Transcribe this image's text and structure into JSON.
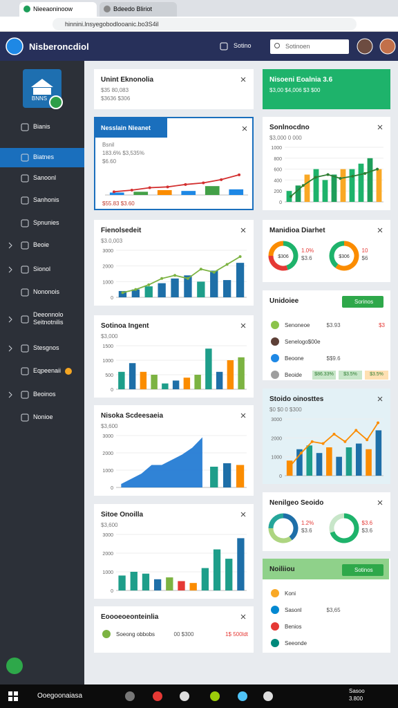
{
  "browser": {
    "tabs": [
      "Nieeaoninoow",
      "Bdeedo Bliriot"
    ],
    "url": "hinnini.lnsyegobodlooanic.bo3S4il"
  },
  "header": {
    "title": "Nisberoncdiol",
    "button": "Sotino",
    "search": "Sotinoen"
  },
  "sidebar": {
    "logo": "BNNS",
    "items": [
      {
        "label": "Bianis",
        "chevron": false
      },
      {
        "label": "Biatnes",
        "active": true
      },
      {
        "label": "Sanoonl"
      },
      {
        "label": "Sanhonis"
      },
      {
        "label": "Spnunies"
      },
      {
        "label": "Beoie",
        "chevron": true
      },
      {
        "label": "Sionol",
        "chevron": true
      },
      {
        "label": "Nononois"
      },
      {
        "label": "Deeonnolo Seitnotnilis",
        "chevron": true
      },
      {
        "label": "Stesgnos",
        "chevron": true
      },
      {
        "label": "Eqpeenaii",
        "dot": true
      },
      {
        "label": "Beoinos",
        "chevron": true
      },
      {
        "label": "Nonioe"
      }
    ]
  },
  "cards": [
    {
      "title": "Unint Eknonolia",
      "lines": [
        "$35 80,083",
        "$3636 $306"
      ]
    },
    {
      "tag": "Nesslain Nieanet",
      "lines": [
        "Bsnil",
        "183.6% $3,535%",
        "$6.60"
      ],
      "chart": {
        "type": "bar-line",
        "ylim": [
          0,
          60
        ],
        "bars": [
          6,
          8,
          12,
          10,
          22,
          14
        ],
        "bar_colors": [
          "#1e88e5",
          "#43a047",
          "#fb8c00",
          "#1e88e5",
          "#43a047",
          "#1e88e5"
        ],
        "line": [
          8,
          12,
          18,
          20,
          26,
          30,
          38,
          50
        ],
        "line_color": "#d32f2f"
      },
      "footer": "$55.83 $3.60"
    },
    {
      "title": "Fienolsedeit",
      "lines": [
        "$3.0,003"
      ],
      "chart": {
        "type": "bar-line",
        "ylim": [
          0,
          3000
        ],
        "yticks": [
          0,
          1000,
          2000,
          3000
        ],
        "bars": [
          400,
          500,
          700,
          900,
          1200,
          1400,
          1000,
          1700,
          1100,
          2200
        ],
        "bar_colors": [
          "#1e6fa8",
          "#1e6fa8",
          "#1e9e8a",
          "#1e6fa8"
        ],
        "line": [
          300,
          500,
          800,
          1200,
          1400,
          1200,
          1800,
          1600,
          2100,
          2600
        ],
        "line_color": "#7cb342"
      }
    },
    {
      "title": "Sotinoa Ingent",
      "lines": [
        "$3,000"
      ],
      "chart": {
        "type": "bar",
        "ylim": [
          0,
          1500
        ],
        "yticks": [
          0,
          500,
          1000,
          1500
        ],
        "bars": [
          600,
          900,
          600,
          500,
          200,
          300,
          400,
          500,
          1400,
          600,
          1000,
          1100
        ],
        "bar_colors": [
          "#1e9e8a",
          "#1e6fa8",
          "#fb8c00",
          "#7cb342"
        ]
      }
    },
    {
      "title": "Nisoka Scdeesaeia",
      "lines": [
        "$3,600"
      ],
      "chart": {
        "type": "area-bar",
        "ylim": [
          0,
          3000
        ],
        "yticks": [
          0,
          1000,
          2000,
          3000
        ],
        "line": [
          200,
          500,
          800,
          1300,
          1300,
          1600,
          1900,
          2300,
          2900
        ],
        "line_color": "#1976d2",
        "bars": [
          1200,
          1400,
          1300
        ],
        "bar_colors": [
          "#1e9e8a",
          "#1e6fa8",
          "#fb8c00"
        ]
      }
    },
    {
      "title": "Sitoe Onoilla",
      "lines": [
        "$3,600"
      ],
      "chart": {
        "type": "bar",
        "ylim": [
          0,
          3000
        ],
        "yticks": [
          0,
          1000,
          2000,
          3000
        ],
        "bars": [
          800,
          1000,
          900,
          600,
          700,
          500,
          400,
          1200,
          2200,
          1700,
          2800
        ],
        "bar_colors": [
          "#1e9e8a",
          "#1e9e8a",
          "#1e9e8a",
          "#1e6fa8",
          "#7cb342",
          "#e53935",
          "#fb8c00"
        ]
      }
    },
    {
      "title": "Eoooeoeonteinlia",
      "rows": [
        {
          "label": "Soeong obbobs",
          "value": "00 $300",
          "badge": "1$ 500ldt",
          "icon": "#7cb342"
        }
      ]
    },
    {
      "title": "Nisoeni Eoalnia 3.6",
      "lines": [
        "$3,00 $4,006 $3 $00"
      ],
      "style": "green"
    },
    {
      "title": "Sonlnocdno",
      "lines": [
        "$3,000 0 000"
      ],
      "chart": {
        "type": "bar-line",
        "ylim": [
          0,
          1000
        ],
        "yticks": [
          0,
          200,
          400,
          600,
          800,
          1000
        ],
        "bars": [
          200,
          300,
          500,
          600,
          400,
          500,
          600,
          600,
          700,
          800,
          600
        ],
        "bar_colors": [
          "#1eb36b",
          "#1e9e5a",
          "#f9a825",
          "#1eb36b"
        ],
        "line": [
          100,
          300,
          450,
          500,
          430,
          470,
          520,
          600
        ],
        "line_color": "#2e7d32"
      }
    },
    {
      "title": "Manidioa Diarhet",
      "donuts": [
        {
          "values": [
            45,
            30,
            25
          ],
          "colors": [
            "#1eb36b",
            "#e53935",
            "#fb8c00"
          ],
          "center": "$306",
          "stats": [
            "1.0%",
            "$3.6"
          ]
        },
        {
          "values": [
            60,
            40
          ],
          "colors": [
            "#fb8c00",
            "#1eb36b"
          ],
          "center": "$306",
          "stats": [
            "10",
            "$6"
          ]
        }
      ]
    },
    {
      "title": "Unidoiee",
      "button": "Sorinos",
      "rows": [
        {
          "label": "Senoneoe",
          "value": "$3.93",
          "badge": "$3",
          "icon": "#8bc34a"
        },
        {
          "label": "Senelogo$00e",
          "icon": "#5d4037"
        },
        {
          "label": "Beoone",
          "value": "$$9.6",
          "icon": "#1e88e5"
        },
        {
          "label": "Beoide",
          "chips": [
            "$86.33%",
            "$3.5%",
            "$3.5%"
          ],
          "icon": "#9e9e9e"
        }
      ]
    },
    {
      "title": "Stoido oinosttes",
      "lines": [
        "$0 $0 0 $300"
      ],
      "style": "tint",
      "chart": {
        "type": "bar-line",
        "ylim": [
          0,
          3000
        ],
        "yticks": [
          0,
          1000,
          2000,
          3000
        ],
        "bars": [
          800,
          1400,
          1600,
          1200,
          1500,
          1000,
          1500,
          1700,
          1400,
          2400
        ],
        "bar_colors": [
          "#fb8c00",
          "#1e6fa8",
          "#1e9e8a",
          "#1e6fa8"
        ],
        "line": [
          500,
          1200,
          1800,
          1700,
          2200,
          1800,
          2400,
          1900,
          2800
        ],
        "line_color": "#fb8c00"
      }
    },
    {
      "title": "Nenilgeo Seoido",
      "donuts": [
        {
          "values": [
            40,
            35,
            25
          ],
          "colors": [
            "#1e6fa8",
            "#aed581",
            "#26a69a"
          ],
          "center": "",
          "stats": [
            "1.2%",
            "$3.6"
          ]
        },
        {
          "values": [
            70,
            30
          ],
          "colors": [
            "#1eb36b",
            "#c8e6c9"
          ],
          "center": "",
          "stats": [
            "$3.6",
            "$3.6"
          ]
        }
      ]
    },
    {
      "title": "Noiliiou",
      "style": "green-head",
      "button": "Sotinos",
      "rows": [
        {
          "label": "Koni",
          "icon": "#f9a825"
        },
        {
          "label": "Sasonl",
          "value": "$3,65",
          "icon": "#0288d1"
        },
        {
          "label": "Benios",
          "icon": "#e53935"
        },
        {
          "label": "Seeonde",
          "icon": "#00897b"
        }
      ]
    }
  ],
  "taskbar": {
    "search": "Ooegoonaiasa",
    "time": [
      "Sasoo",
      "3.800"
    ]
  }
}
